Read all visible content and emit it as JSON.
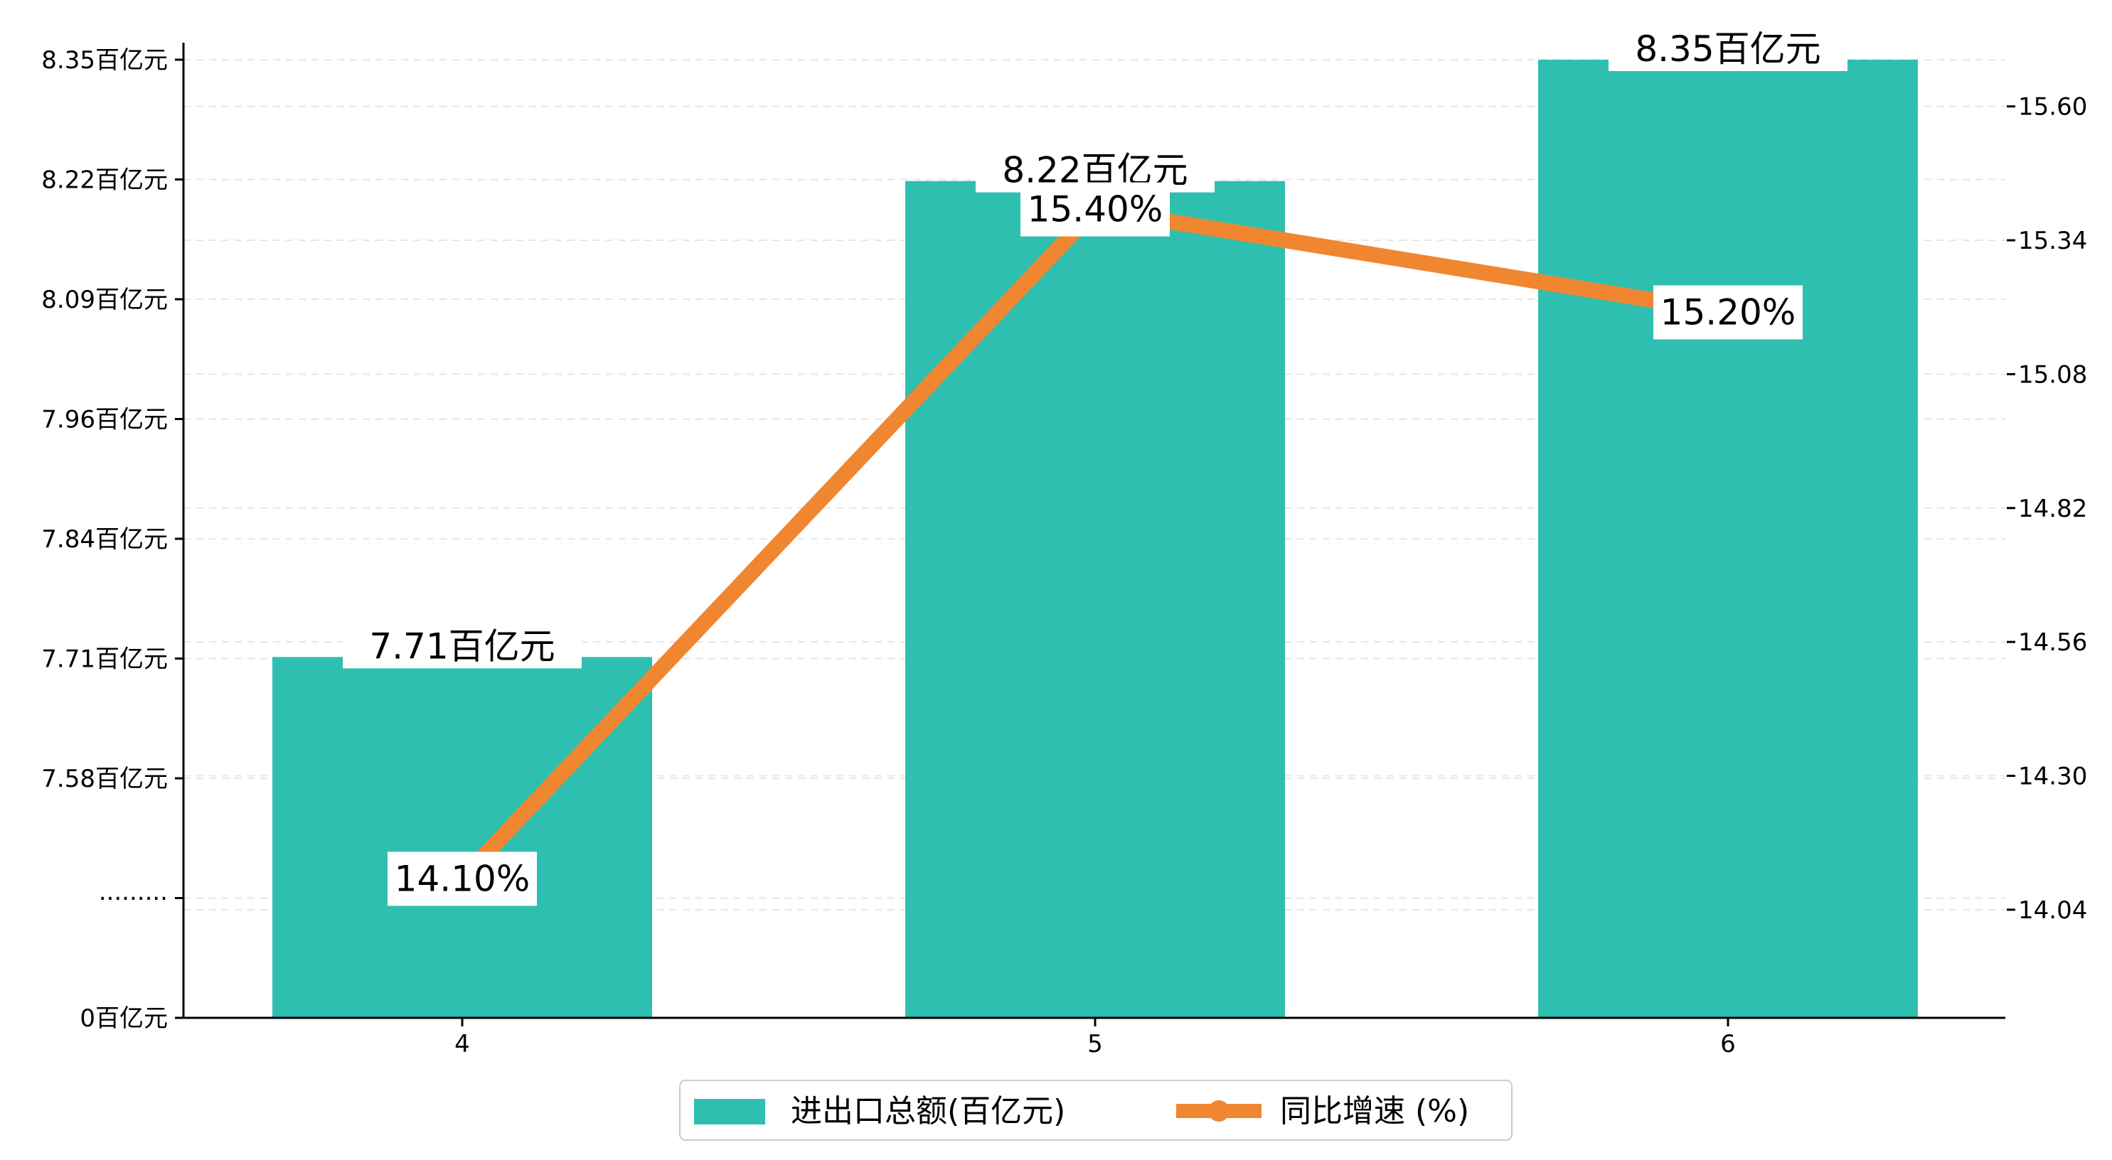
{
  "colors": {
    "bar": "#2fbfb1",
    "line": "#f08630",
    "axis": "#000000",
    "grid": "#e6e6e6"
  },
  "chart_data": {
    "type": "bar",
    "categories": [
      "4",
      "5",
      "6"
    ],
    "series": [
      {
        "name": "进出口总额(百亿元)",
        "type": "bar",
        "axis": "left",
        "values": [
          7.71,
          8.22,
          8.35
        ],
        "labels": [
          "7.71百亿元",
          "8.22百亿元",
          "8.35百亿元"
        ]
      },
      {
        "name": "同比增速 (%)",
        "type": "line",
        "axis": "right",
        "values": [
          14.1,
          15.4,
          15.2
        ],
        "labels": [
          "14.10%",
          "15.40%",
          "15.20%"
        ]
      }
    ],
    "y_left": {
      "broken_axis": true,
      "ticks": [
        0,
        null,
        7.58,
        7.71,
        7.84,
        7.96,
        8.09,
        8.22,
        8.35
      ],
      "tick_labels": [
        "0百亿元",
        "·········",
        "7.58百亿元",
        "7.71百亿元",
        "7.84百亿元",
        "7.96百亿元",
        "8.09百亿元",
        "8.22百亿元",
        "8.35百亿元"
      ]
    },
    "y_right": {
      "range": [
        13.83,
        15.71
      ],
      "ticks": [
        14.04,
        14.3,
        14.56,
        14.82,
        15.08,
        15.34,
        15.6
      ],
      "tick_labels": [
        "14.04",
        "14.30",
        "14.56",
        "14.82",
        "15.08",
        "15.34",
        "15.60"
      ]
    },
    "grid": "horizontal-dashed",
    "legend": {
      "placement": "bottom-center",
      "entries": [
        "进出口总额(百亿元)",
        "同比增速 (%)"
      ]
    }
  }
}
